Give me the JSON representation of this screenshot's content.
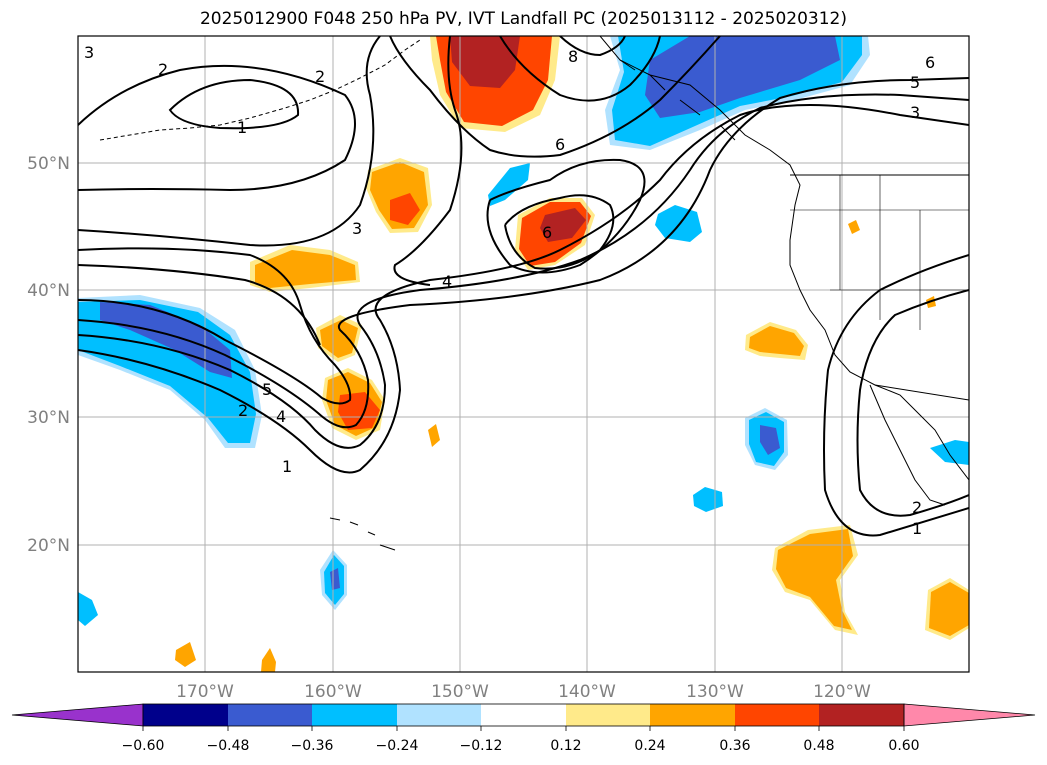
{
  "title": "2025012900 F048 250 hPa PV, IVT Landfall PC (2025013112 - 2025020312)",
  "map": {
    "region": "North-east Pacific and western North America",
    "lat_range": [
      10,
      60
    ],
    "lon_range": [
      -180,
      -110
    ],
    "gridlines": true
  },
  "axes": {
    "lat_labels": [
      "50°N",
      "40°N",
      "30°N",
      "20°N"
    ],
    "lon_labels": [
      "170°W",
      "160°W",
      "150°W",
      "140°W",
      "130°W",
      "120°W"
    ]
  },
  "contours": {
    "field": "250 hPa PV",
    "labels": [
      "3",
      "2",
      "2",
      "1",
      "8",
      "6",
      "6",
      "5",
      "3",
      "3",
      "4",
      "6",
      "5",
      "2",
      "4",
      "1",
      "2",
      "1"
    ]
  },
  "colorbar": {
    "ticks": [
      "−0.60",
      "−0.48",
      "−0.36",
      "−0.24",
      "−0.12",
      "0.12",
      "0.24",
      "0.36",
      "0.48",
      "0.60"
    ],
    "colors": [
      "#9932cc",
      "#00008b",
      "#3a5bd0",
      "#00bfff",
      "#b0e2ff",
      "#ffffff",
      "#ffea8a",
      "#ffa500",
      "#ff4500",
      "#b22222",
      "#ff88aa"
    ]
  }
}
